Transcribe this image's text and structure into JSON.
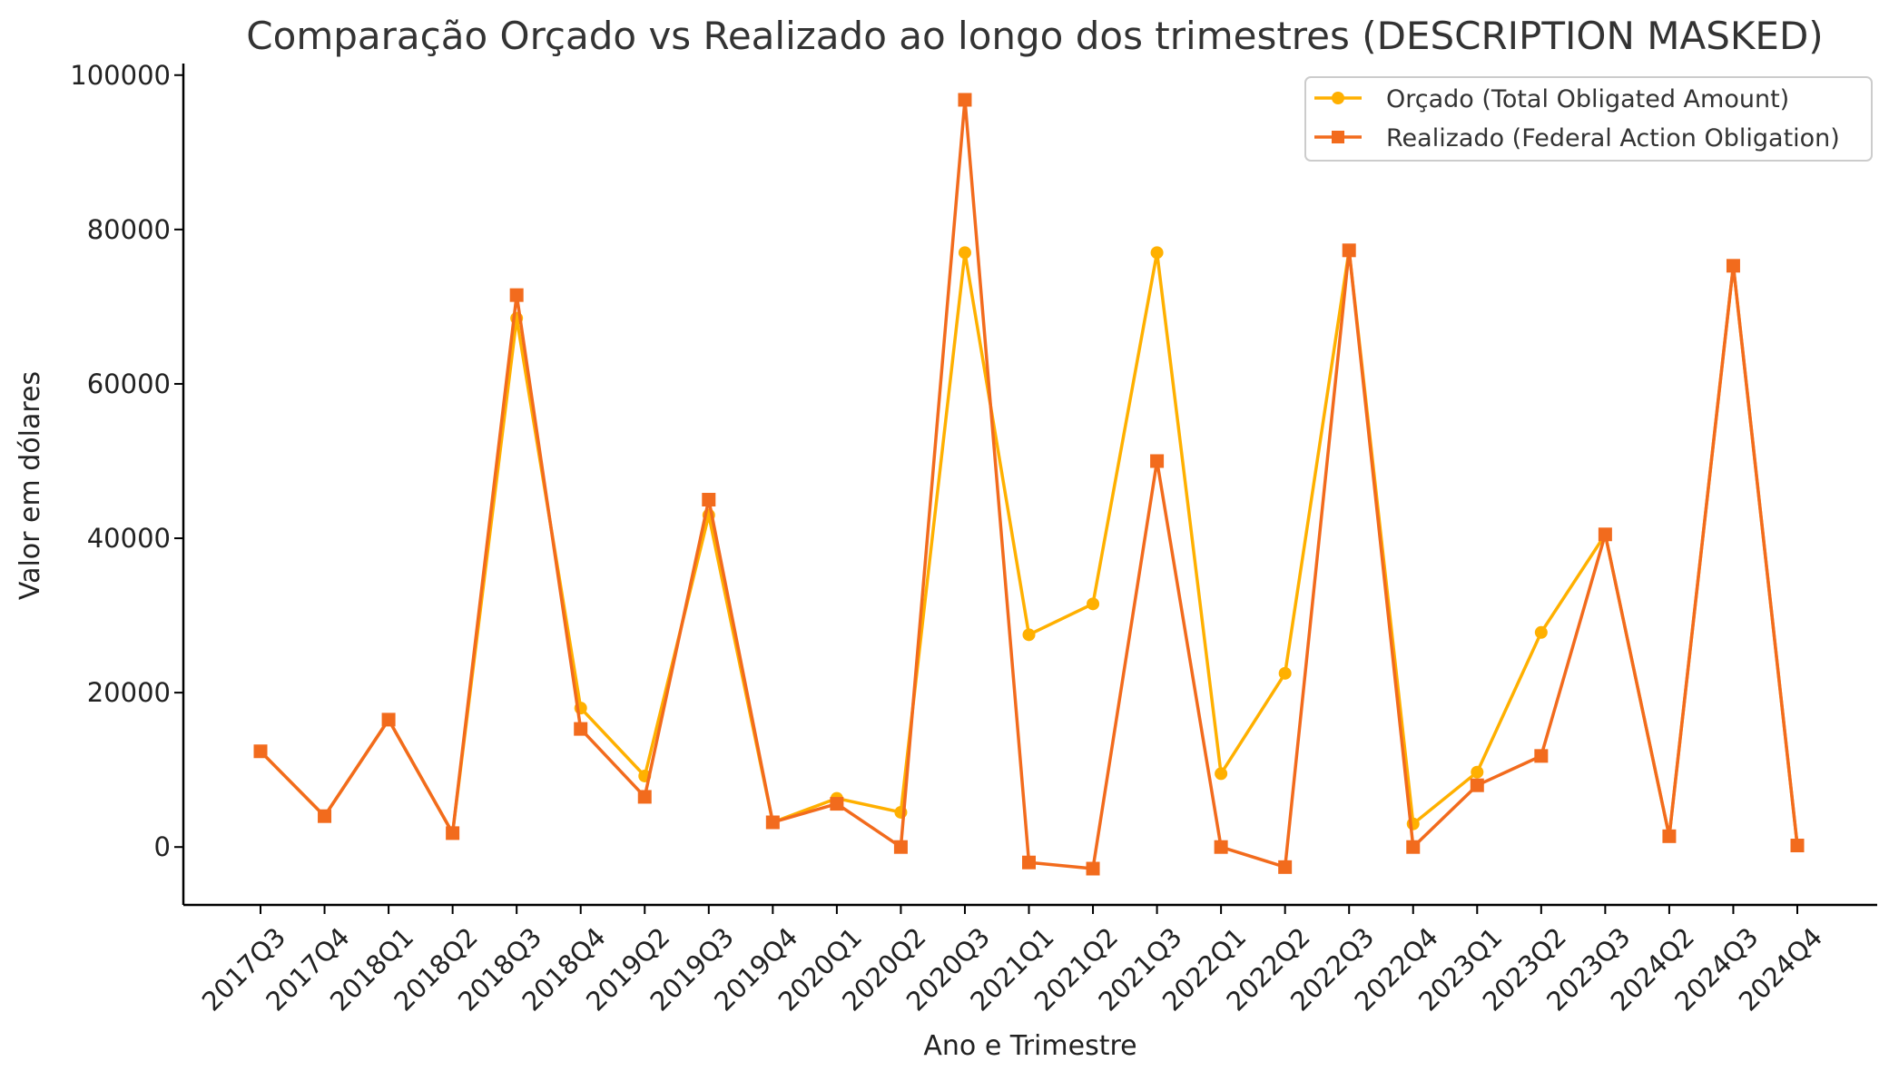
{
  "chart_data": {
    "type": "line",
    "title": "Comparação Orçado vs Realizado ao longo dos trimestres (DESCRIPTION MASKED)",
    "xlabel": "Ano e Trimestre",
    "ylabel": "Valor em dólares",
    "categories": [
      "2017Q3",
      "2017Q4",
      "2018Q1",
      "2018Q2",
      "2018Q3",
      "2018Q4",
      "2019Q2",
      "2019Q3",
      "2019Q4",
      "2020Q1",
      "2020Q2",
      "2020Q3",
      "2021Q1",
      "2021Q2",
      "2021Q3",
      "2022Q1",
      "2022Q2",
      "2022Q3",
      "2022Q4",
      "2023Q1",
      "2023Q2",
      "2023Q3",
      "2024Q2",
      "2024Q3",
      "2024Q4"
    ],
    "ylim": [
      -7500,
      101500
    ],
    "yticks": [
      0,
      20000,
      40000,
      60000,
      80000,
      100000
    ],
    "ytick_labels": [
      "0",
      "20000",
      "40000",
      "60000",
      "80000",
      "100000"
    ],
    "legend_position": "top-right",
    "series": [
      {
        "name": "Orçado (Total Obligated Amount)",
        "color": "#FFB000",
        "marker": "circle",
        "values": [
          12400,
          4000,
          16500,
          1800,
          68500,
          18000,
          9200,
          43000,
          3200,
          6300,
          4500,
          77000,
          27500,
          31500,
          77000,
          9500,
          22500,
          77300,
          3000,
          9700,
          27800,
          40500,
          1400,
          75300,
          200
        ]
      },
      {
        "name": "Realizado (Federal Action Obligation)",
        "color": "#F26B1D",
        "marker": "square",
        "values": [
          12400,
          4000,
          16500,
          1800,
          71500,
          15300,
          6500,
          45000,
          3200,
          5600,
          0,
          96800,
          -2000,
          -2800,
          50000,
          0,
          -2600,
          77300,
          0,
          8000,
          11800,
          40500,
          1400,
          75300,
          200
        ]
      }
    ]
  }
}
